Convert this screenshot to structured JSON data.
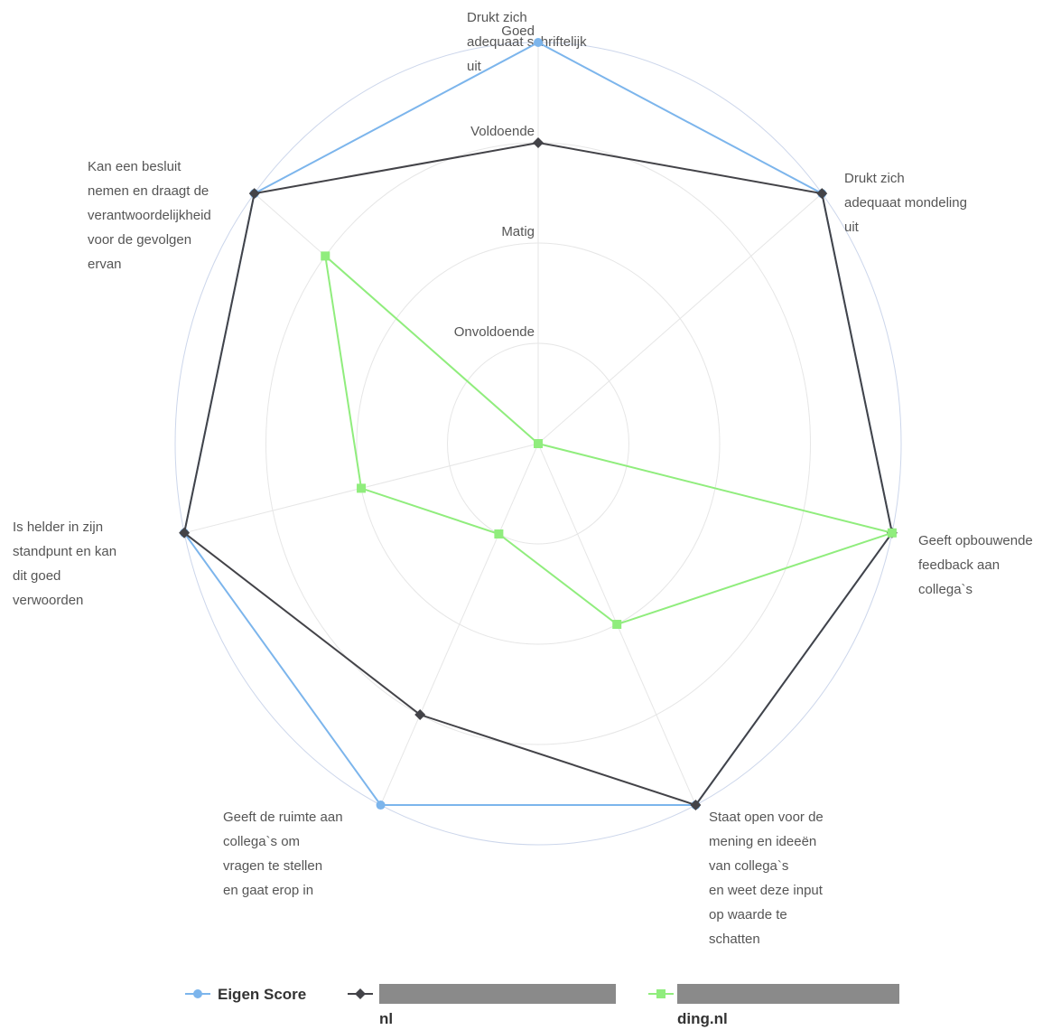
{
  "chart_data": {
    "type": "radar",
    "categories": [
      "Drukt zich\nadequaat schriftelijk\nuit",
      "Drukt zich\nadequaat mondeling\nuit",
      "Geeft opbouwende\nfeedback aan\ncollega`s",
      "Staat open voor de\nmening en ideeën\nvan collega`s\nen weet deze input\nop waarde te\nschatten",
      "Geeft de ruimte aan\ncollega`s om\nvragen te stellen\nen gaat erop in",
      "Is helder in zijn\nstandpunt en kan\ndit goed\nverwoorden",
      "Kan een besluit\nnemen en draagt de\nverantwoordelijkheid\nvoor de gevolgen\nervan"
    ],
    "ylim": [
      0,
      4
    ],
    "yticks": [
      {
        "value": 1,
        "label": "Onvoldoende"
      },
      {
        "value": 2,
        "label": "Matig"
      },
      {
        "value": 3,
        "label": "Voldoende"
      },
      {
        "value": 4,
        "label": "Goed"
      }
    ],
    "series": [
      {
        "name": "Eigen Score",
        "color": "#7cb5ec",
        "marker": "circle",
        "values": [
          4,
          4,
          4,
          4,
          4,
          4,
          4
        ]
      },
      {
        "name": "nl",
        "color": "#434348",
        "marker": "diamond",
        "values": [
          3,
          4,
          4,
          4,
          3,
          4,
          4
        ]
      },
      {
        "name": "ding.nl",
        "color": "#90ed7d",
        "marker": "square",
        "values": [
          0,
          0,
          4,
          2,
          1,
          2,
          3
        ]
      }
    ]
  }
}
